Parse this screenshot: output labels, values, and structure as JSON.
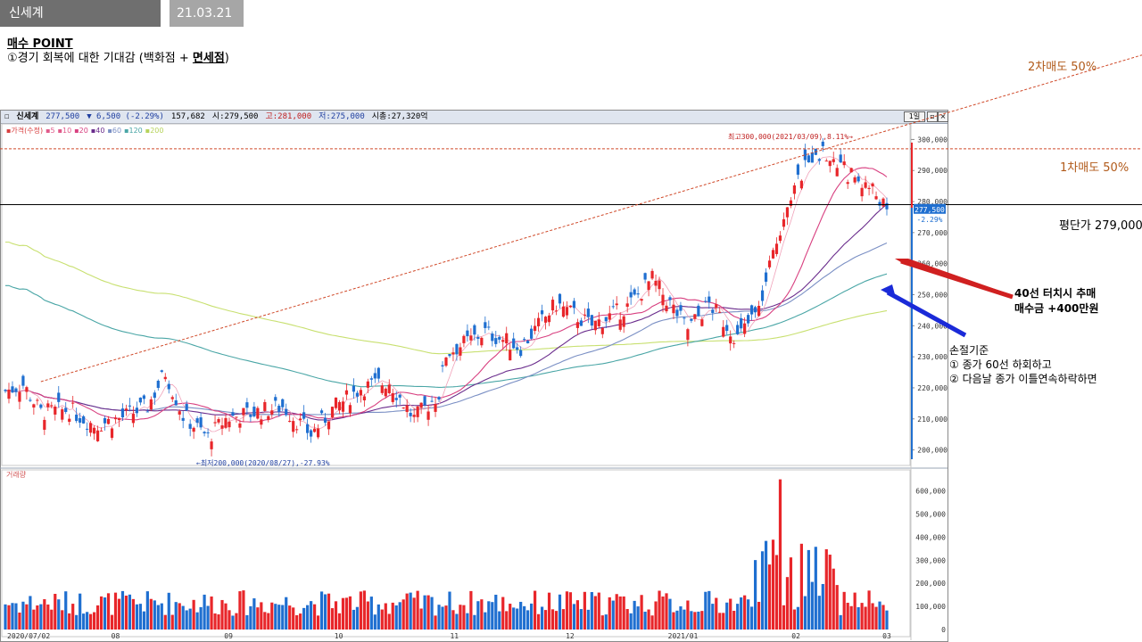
{
  "header": {
    "ticker_tab": "신세계",
    "date_tab": "21.03.21일"
  },
  "buy_point": {
    "title": "매수 POINT",
    "line_prefix": "①경기 회복에 대한 기대감 (백화점 + ",
    "line_emph": "면세점",
    "line_suffix": ")"
  },
  "chart_window": {
    "name": "신세계",
    "price": "277,500",
    "change": "▼ 6,500 (-2.29%)",
    "volume": "157,682",
    "open": "시:279,500",
    "high": "고:281,000",
    "low": "저:275,000",
    "mcap": "시총:27,320억",
    "period_btn": "1일",
    "ma_legend": [
      {
        "text": "가격(수정)",
        "color": "#d84040"
      },
      {
        "text": "5",
        "color": "#e05a8a"
      },
      {
        "text": "10",
        "color": "#e05a8a"
      },
      {
        "text": "20",
        "color": "#d84080"
      },
      {
        "text": "40",
        "color": "#6a2c8c"
      },
      {
        "text": "60",
        "color": "#7a8fc4"
      },
      {
        "text": "120",
        "color": "#4aa6a6"
      },
      {
        "text": "200",
        "color": "#b6d35a"
      }
    ],
    "volume_legend": "거래량",
    "high_note": "최고300,000(2021/03/09),8.11%→",
    "low_note": "←최저200,000(2020/08/27),-27.93%",
    "current_price_tag": "277,500",
    "current_change_tag": "-2.29%"
  },
  "annotations": {
    "second_sell": "2차매도 50%",
    "first_sell": "1차매도 50%",
    "avg_price": "평단가 279,000",
    "ma40_line1": "40선 터치시 추매",
    "ma40_line2": "매수금 +400만원",
    "stop_title": "손절기준",
    "stop_1": "① 종가 60선 하회하고",
    "stop_2": "② 다음날 종가 이틀연속하락하면"
  },
  "colors": {
    "up": "#e8262a",
    "down": "#1f6fd0",
    "ma5": "#f0a0b8",
    "ma20": "#d84080",
    "ma40": "#6a2c8c",
    "ma60": "#7a8fc4",
    "ma120": "#4aa6a6",
    "ma200": "#c8e070",
    "trend": "#d04a2a"
  },
  "chart_data": {
    "type": "candlestick",
    "title": "신세계",
    "ylim": [
      195000,
      305000
    ],
    "y_ticks": [
      "300,000",
      "290,000",
      "280,000",
      "270,000",
      "260,000",
      "250,000",
      "240,000",
      "230,000",
      "220,000",
      "210,000",
      "200,000"
    ],
    "y_tick_values": [
      300000,
      290000,
      280000,
      270000,
      260000,
      250000,
      240000,
      230000,
      220000,
      210000,
      200000
    ],
    "x_labels": [
      "2020/07/02",
      "08",
      "09",
      "10",
      "11",
      "12",
      "2021/01",
      "02",
      "03"
    ],
    "volume_ticks": [
      "600,000",
      "500,000",
      "400,000",
      "300,000",
      "200,000",
      "100,000",
      "0"
    ],
    "volume_tick_values": [
      600000,
      500000,
      400000,
      300000,
      200000,
      100000,
      0
    ],
    "volume_ylim": [
      0,
      660000
    ],
    "close_keypoints": [
      [
        0,
        219000
      ],
      [
        5,
        221000
      ],
      [
        10,
        212000
      ],
      [
        18,
        213000
      ],
      [
        25,
        208000
      ],
      [
        32,
        210000
      ],
      [
        40,
        214000
      ],
      [
        45,
        225000
      ],
      [
        50,
        211000
      ],
      [
        57,
        204000
      ],
      [
        62,
        210000
      ],
      [
        70,
        212000
      ],
      [
        78,
        214000
      ],
      [
        86,
        205000
      ],
      [
        92,
        213000
      ],
      [
        100,
        220000
      ],
      [
        108,
        222000
      ],
      [
        115,
        210000
      ],
      [
        122,
        218000
      ],
      [
        124,
        231000
      ],
      [
        135,
        238000
      ],
      [
        145,
        233000
      ],
      [
        155,
        247000
      ],
      [
        165,
        240000
      ],
      [
        175,
        246000
      ],
      [
        182,
        255000
      ],
      [
        192,
        239000
      ],
      [
        198,
        247000
      ],
      [
        206,
        236000
      ],
      [
        212,
        245000
      ],
      [
        220,
        280000
      ],
      [
        228,
        297000
      ],
      [
        236,
        290000
      ],
      [
        244,
        284000
      ],
      [
        248,
        277500
      ]
    ],
    "levels": {
      "first_sell": 297000,
      "avg_price": 279000
    },
    "trendline": [
      [
        10,
        222000
      ],
      [
        250,
        303500
      ]
    ]
  }
}
